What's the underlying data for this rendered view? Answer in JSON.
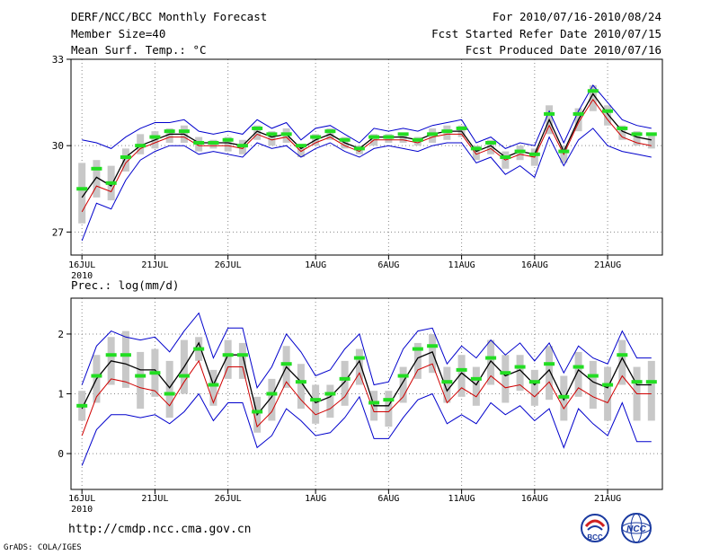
{
  "header": {
    "title": "DERF/NCC/BCC Monthly Forecast",
    "member_size": "Member Size=40",
    "variable": "Mean Surf. Temp.: °C",
    "forecast_period": "For 2010/07/16-2010/08/24",
    "fcst_started": "Fcst Started Refer Date 2010/07/15",
    "fcst_produced": "Fcst Produced Date 2010/07/16"
  },
  "footer": {
    "url": "http://cmdp.ncc.cma.gov.cn",
    "credit": "GrADS: COLA/IGES",
    "logo_bcc": "BCC",
    "logo_ncc": "NCC"
  },
  "colors": {
    "ensemble_mean": "#000000",
    "median": "#d00000",
    "bounds": "#0000cc",
    "box": "#c8c8c8",
    "marker": "#22dd22",
    "grid": "#888888"
  },
  "chart_data": [
    {
      "type": "box",
      "title": "Mean Surf. Temp.: °C",
      "xlabel": "",
      "ylabel": "",
      "ylim": [
        26.2,
        33
      ],
      "yticks": [
        27,
        30,
        33
      ],
      "xtick_labels": [
        "16JUL",
        "21JUL",
        "26JUL",
        "1AUG",
        "6AUG",
        "11AUG",
        "16AUG",
        "21AUG"
      ],
      "xtick_days": [
        1,
        6,
        11,
        17,
        22,
        27,
        32,
        37
      ],
      "year_label": "2010",
      "days": 40,
      "series": [
        {
          "name": "mean",
          "values": [
            28.2,
            28.9,
            28.6,
            29.6,
            30.0,
            30.2,
            30.4,
            30.4,
            30.1,
            30.1,
            30.1,
            30.0,
            30.5,
            30.3,
            30.4,
            29.9,
            30.2,
            30.4,
            30.1,
            29.9,
            30.3,
            30.3,
            30.3,
            30.2,
            30.4,
            30.5,
            30.5,
            29.8,
            30.0,
            29.6,
            29.8,
            29.7,
            30.9,
            29.8,
            30.9,
            31.8,
            31.1,
            30.5,
            30.3,
            30.2
          ]
        },
        {
          "name": "median",
          "values": [
            27.7,
            28.6,
            28.4,
            29.4,
            29.9,
            30.1,
            30.3,
            30.3,
            30.0,
            30.0,
            30.0,
            29.9,
            30.4,
            30.2,
            30.3,
            29.8,
            30.1,
            30.3,
            30.0,
            29.8,
            30.2,
            30.2,
            30.2,
            30.1,
            30.3,
            30.4,
            30.4,
            29.7,
            29.9,
            29.5,
            29.7,
            29.6,
            30.7,
            29.7,
            30.8,
            31.6,
            30.9,
            30.3,
            30.1,
            30.0
          ]
        },
        {
          "name": "upper",
          "values": [
            30.2,
            30.1,
            29.9,
            30.3,
            30.6,
            30.8,
            30.8,
            30.9,
            30.5,
            30.4,
            30.5,
            30.4,
            30.9,
            30.6,
            30.8,
            30.2,
            30.6,
            30.7,
            30.4,
            30.1,
            30.6,
            30.5,
            30.6,
            30.5,
            30.7,
            30.8,
            30.9,
            30.1,
            30.3,
            29.9,
            30.1,
            30.0,
            31.2,
            30.1,
            31.2,
            32.1,
            31.5,
            30.9,
            30.7,
            30.6
          ]
        },
        {
          "name": "lower",
          "values": [
            26.7,
            28.0,
            27.8,
            28.8,
            29.5,
            29.8,
            30.0,
            30.0,
            29.7,
            29.8,
            29.7,
            29.6,
            30.1,
            29.9,
            30.0,
            29.6,
            29.9,
            30.1,
            29.8,
            29.6,
            29.9,
            30.0,
            29.9,
            29.8,
            30.0,
            30.1,
            30.1,
            29.4,
            29.6,
            29.0,
            29.3,
            28.9,
            30.3,
            29.3,
            30.2,
            30.6,
            30.0,
            29.8,
            29.7,
            29.6
          ]
        },
        {
          "name": "box_high",
          "values": [
            29.4,
            29.5,
            29.3,
            29.9,
            30.4,
            30.5,
            30.6,
            30.7,
            30.3,
            30.2,
            30.3,
            30.2,
            30.7,
            30.5,
            30.6,
            30.0,
            30.4,
            30.6,
            30.3,
            30.0,
            30.4,
            30.4,
            30.4,
            30.3,
            30.6,
            30.7,
            30.7,
            30.0,
            30.2,
            29.8,
            30.0,
            29.9,
            31.4,
            30.0,
            31.3,
            32.1,
            31.4,
            30.7,
            30.5,
            30.4
          ]
        },
        {
          "name": "box_low",
          "values": [
            27.3,
            28.2,
            28.1,
            29.1,
            29.7,
            29.9,
            30.1,
            30.1,
            29.8,
            29.9,
            29.8,
            29.7,
            30.2,
            30.0,
            30.1,
            29.6,
            30.0,
            30.2,
            29.9,
            29.7,
            30.0,
            30.1,
            30.1,
            30.0,
            30.1,
            30.2,
            30.3,
            29.5,
            29.7,
            29.2,
            29.5,
            29.3,
            30.4,
            29.4,
            30.5,
            31.2,
            30.7,
            30.2,
            30.0,
            29.9
          ]
        },
        {
          "name": "marker",
          "values": [
            28.5,
            29.2,
            28.7,
            29.6,
            30.0,
            30.3,
            30.5,
            30.5,
            30.1,
            30.1,
            30.2,
            30.0,
            30.6,
            30.4,
            30.4,
            30.0,
            30.3,
            30.5,
            30.2,
            29.9,
            30.3,
            30.3,
            30.4,
            30.2,
            30.4,
            30.5,
            30.6,
            29.9,
            30.1,
            29.6,
            29.8,
            29.7,
            31.1,
            29.8,
            31.1,
            31.9,
            31.2,
            30.6,
            30.4,
            30.4
          ]
        }
      ]
    },
    {
      "type": "box",
      "title": "Prec.: log(mm/d)",
      "xlabel": "",
      "ylabel": "",
      "ylim": [
        -0.6,
        2.6
      ],
      "yticks": [
        0,
        1,
        2
      ],
      "xtick_labels": [
        "16JUL",
        "21JUL",
        "26JUL",
        "1AUG",
        "6AUG",
        "11AUG",
        "16AUG",
        "21AUG"
      ],
      "xtick_days": [
        1,
        6,
        11,
        17,
        22,
        27,
        32,
        37
      ],
      "year_label": "2010",
      "days": 40,
      "series": [
        {
          "name": "mean",
          "values": [
            0.75,
            1.25,
            1.55,
            1.5,
            1.4,
            1.4,
            1.1,
            1.45,
            1.85,
            1.15,
            1.65,
            1.65,
            0.65,
            0.95,
            1.45,
            1.2,
            0.85,
            0.95,
            1.2,
            1.55,
            0.8,
            0.8,
            1.2,
            1.6,
            1.7,
            1.05,
            1.35,
            1.15,
            1.55,
            1.3,
            1.4,
            1.15,
            1.4,
            0.9,
            1.4,
            1.2,
            1.1,
            1.6,
            1.15,
            1.15
          ]
        },
        {
          "name": "median",
          "values": [
            0.3,
            0.95,
            1.25,
            1.2,
            1.1,
            1.05,
            0.8,
            1.2,
            1.55,
            0.85,
            1.45,
            1.45,
            0.45,
            0.7,
            1.2,
            0.9,
            0.65,
            0.75,
            0.95,
            1.35,
            0.7,
            0.7,
            0.95,
            1.4,
            1.5,
            0.85,
            1.1,
            0.95,
            1.3,
            1.1,
            1.15,
            0.95,
            1.2,
            0.75,
            1.1,
            0.95,
            0.85,
            1.3,
            1.0,
            1.0
          ]
        },
        {
          "name": "upper",
          "values": [
            1.15,
            1.8,
            2.05,
            1.95,
            1.9,
            1.95,
            1.7,
            2.05,
            2.35,
            1.6,
            2.1,
            2.1,
            1.1,
            1.45,
            2.0,
            1.7,
            1.3,
            1.4,
            1.75,
            2.0,
            1.15,
            1.2,
            1.75,
            2.05,
            2.1,
            1.5,
            1.8,
            1.6,
            1.9,
            1.65,
            1.85,
            1.55,
            1.85,
            1.35,
            1.8,
            1.6,
            1.5,
            2.05,
            1.6,
            1.6
          ]
        },
        {
          "name": "lower",
          "values": [
            -0.2,
            0.4,
            0.65,
            0.65,
            0.6,
            0.65,
            0.5,
            0.7,
            1.0,
            0.55,
            0.85,
            0.85,
            0.1,
            0.3,
            0.75,
            0.55,
            0.3,
            0.35,
            0.6,
            0.95,
            0.25,
            0.25,
            0.6,
            0.9,
            1.0,
            0.5,
            0.65,
            0.5,
            0.85,
            0.65,
            0.8,
            0.55,
            0.75,
            0.1,
            0.75,
            0.5,
            0.3,
            0.85,
            0.2,
            0.2
          ]
        },
        {
          "name": "box_high",
          "values": [
            1.05,
            1.65,
            1.95,
            2.05,
            1.7,
            1.75,
            1.55,
            1.9,
            1.95,
            1.4,
            1.9,
            1.85,
            0.95,
            1.25,
            1.8,
            1.5,
            1.15,
            1.15,
            1.55,
            1.75,
            1.05,
            1.05,
            1.45,
            1.85,
            2.0,
            1.45,
            1.65,
            1.45,
            1.9,
            1.65,
            1.65,
            1.4,
            1.8,
            1.3,
            1.7,
            1.55,
            1.45,
            1.9,
            1.45,
            1.55
          ]
        },
        {
          "name": "box_low",
          "values": [
            0.55,
            0.85,
            1.15,
            1.1,
            0.75,
            0.95,
            0.6,
            1.0,
            1.55,
            0.8,
            1.25,
            1.25,
            0.35,
            0.55,
            1.1,
            0.75,
            0.5,
            0.6,
            0.8,
            1.15,
            0.55,
            0.45,
            0.85,
            1.25,
            1.35,
            0.85,
            0.95,
            0.8,
            1.15,
            0.85,
            1.05,
            0.8,
            0.9,
            0.55,
            0.95,
            0.75,
            0.55,
            1.15,
            0.55,
            0.55
          ]
        },
        {
          "name": "marker",
          "values": [
            0.8,
            1.3,
            1.65,
            1.65,
            1.3,
            1.35,
            1.0,
            1.3,
            1.75,
            1.15,
            1.65,
            1.65,
            0.7,
            1.0,
            1.5,
            1.2,
            0.9,
            1.0,
            1.25,
            1.6,
            0.85,
            0.9,
            1.3,
            1.75,
            1.8,
            1.2,
            1.4,
            1.25,
            1.6,
            1.35,
            1.45,
            1.2,
            1.5,
            0.95,
            1.45,
            1.3,
            1.15,
            1.65,
            1.2,
            1.2
          ]
        }
      ]
    }
  ]
}
